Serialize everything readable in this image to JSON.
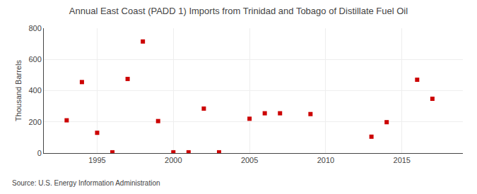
{
  "chart_data": {
    "type": "scatter",
    "title": "Annual East Coast (PADD 1) Imports from Trinidad and Tobago of Distillate Fuel Oil",
    "ylabel": "Thousand Barrels",
    "source": "Source: U.S. Energy Information Administration",
    "x": [
      1993,
      1994,
      1995,
      1996,
      1997,
      1998,
      1999,
      2000,
      2001,
      2002,
      2003,
      2005,
      2006,
      2007,
      2009,
      2013,
      2014,
      2016,
      2017
    ],
    "values": [
      210,
      455,
      130,
      5,
      475,
      715,
      205,
      5,
      5,
      285,
      5,
      220,
      255,
      255,
      250,
      105,
      198,
      470,
      348
    ],
    "color": "#cc0000",
    "marker": "square",
    "xlim": [
      1991.5,
      2019
    ],
    "xticks": [
      1995,
      2000,
      2005,
      2010,
      2015
    ],
    "ylim": [
      0,
      800
    ],
    "yticks": [
      0,
      200,
      400,
      600,
      800
    ],
    "grid": true
  }
}
